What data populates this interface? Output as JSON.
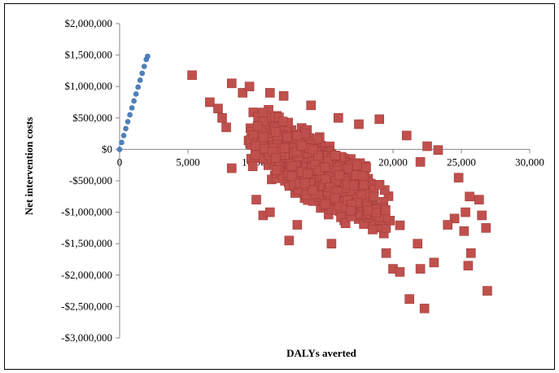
{
  "chart_data": {
    "type": "scatter",
    "xlabel": "DALYs averted",
    "ylabel": "Net intervention costs",
    "xlim": [
      0,
      30000
    ],
    "ylim": [
      -3000000,
      2000000
    ],
    "x_ticks": [
      0,
      5000,
      10000,
      15000,
      20000,
      25000,
      30000
    ],
    "x_tick_labels": [
      "0",
      "5,000",
      "10,000",
      "15,000",
      "20,000",
      "25,000",
      "30,000"
    ],
    "y_ticks": [
      2000000,
      1500000,
      1000000,
      500000,
      0,
      -500000,
      -1000000,
      -1500000,
      -2000000,
      -2500000,
      -3000000
    ],
    "y_tick_labels": [
      "$2,000,000",
      "$1,500,000",
      "$1,000,000",
      "$500,000",
      "$0",
      "-$500,000",
      "-$1,000,000",
      "-$1,500,000",
      "-$2,000,000",
      "-$2,500,000",
      "-$3,000,000"
    ],
    "grid": false,
    "legend": "none",
    "series": [
      {
        "color": "#4f81bd",
        "marker": "circle",
        "points": [
          [
            0,
            0
          ],
          [
            150,
            110000
          ],
          [
            300,
            220000
          ],
          [
            450,
            330000
          ],
          [
            600,
            440000
          ],
          [
            750,
            550000
          ],
          [
            900,
            660000
          ],
          [
            1050,
            770000
          ],
          [
            1200,
            880000
          ],
          [
            1350,
            990000
          ],
          [
            1500,
            1100000
          ],
          [
            1650,
            1210000
          ],
          [
            1800,
            1320000
          ],
          [
            1950,
            1430000
          ],
          [
            2050,
            1480000
          ]
        ]
      },
      {
        "color": "#c0504d",
        "marker": "square",
        "cloud": {
          "count": 1600,
          "center": [
            14500,
            -350000
          ],
          "slope_per_daly": -130,
          "x_spread": 3600,
          "y_spread": 380000,
          "x_range": [
            7000,
            25500
          ],
          "y_range": [
            -1550000,
            800000
          ]
        },
        "points": [
          [
            5300,
            1180000
          ],
          [
            6600,
            750000
          ],
          [
            7500,
            500000
          ],
          [
            8200,
            1050000
          ],
          [
            9000,
            900000
          ],
          [
            9500,
            1000000
          ],
          [
            8200,
            -300000
          ],
          [
            10000,
            -800000
          ],
          [
            10500,
            -1050000
          ],
          [
            11000,
            -1000000
          ],
          [
            12400,
            -1450000
          ],
          [
            13000,
            -1200000
          ],
          [
            15500,
            -1500000
          ],
          [
            19000,
            480000
          ],
          [
            21000,
            220000
          ],
          [
            22000,
            -200000
          ],
          [
            22500,
            50000
          ],
          [
            23300,
            -10000
          ],
          [
            24500,
            -1100000
          ],
          [
            25200,
            -1300000
          ],
          [
            25500,
            -1850000
          ],
          [
            25700,
            -1650000
          ],
          [
            26500,
            -1050000
          ],
          [
            26800,
            -1250000
          ],
          [
            26900,
            -2250000
          ],
          [
            21200,
            -2380000
          ],
          [
            22300,
            -2530000
          ],
          [
            22000,
            -1900000
          ],
          [
            23000,
            -1800000
          ],
          [
            20000,
            -1900000
          ],
          [
            20500,
            -1950000
          ],
          [
            19500,
            -1650000
          ],
          [
            21800,
            -1500000
          ],
          [
            24000,
            -1200000
          ],
          [
            25600,
            -750000
          ],
          [
            24800,
            -450000
          ],
          [
            25300,
            -1000000
          ],
          [
            26300,
            -800000
          ],
          [
            17500,
            400000
          ],
          [
            16000,
            500000
          ],
          [
            14000,
            700000
          ],
          [
            12000,
            850000
          ],
          [
            11000,
            900000
          ],
          [
            7800,
            350000
          ],
          [
            7200,
            650000
          ]
        ]
      }
    ]
  }
}
